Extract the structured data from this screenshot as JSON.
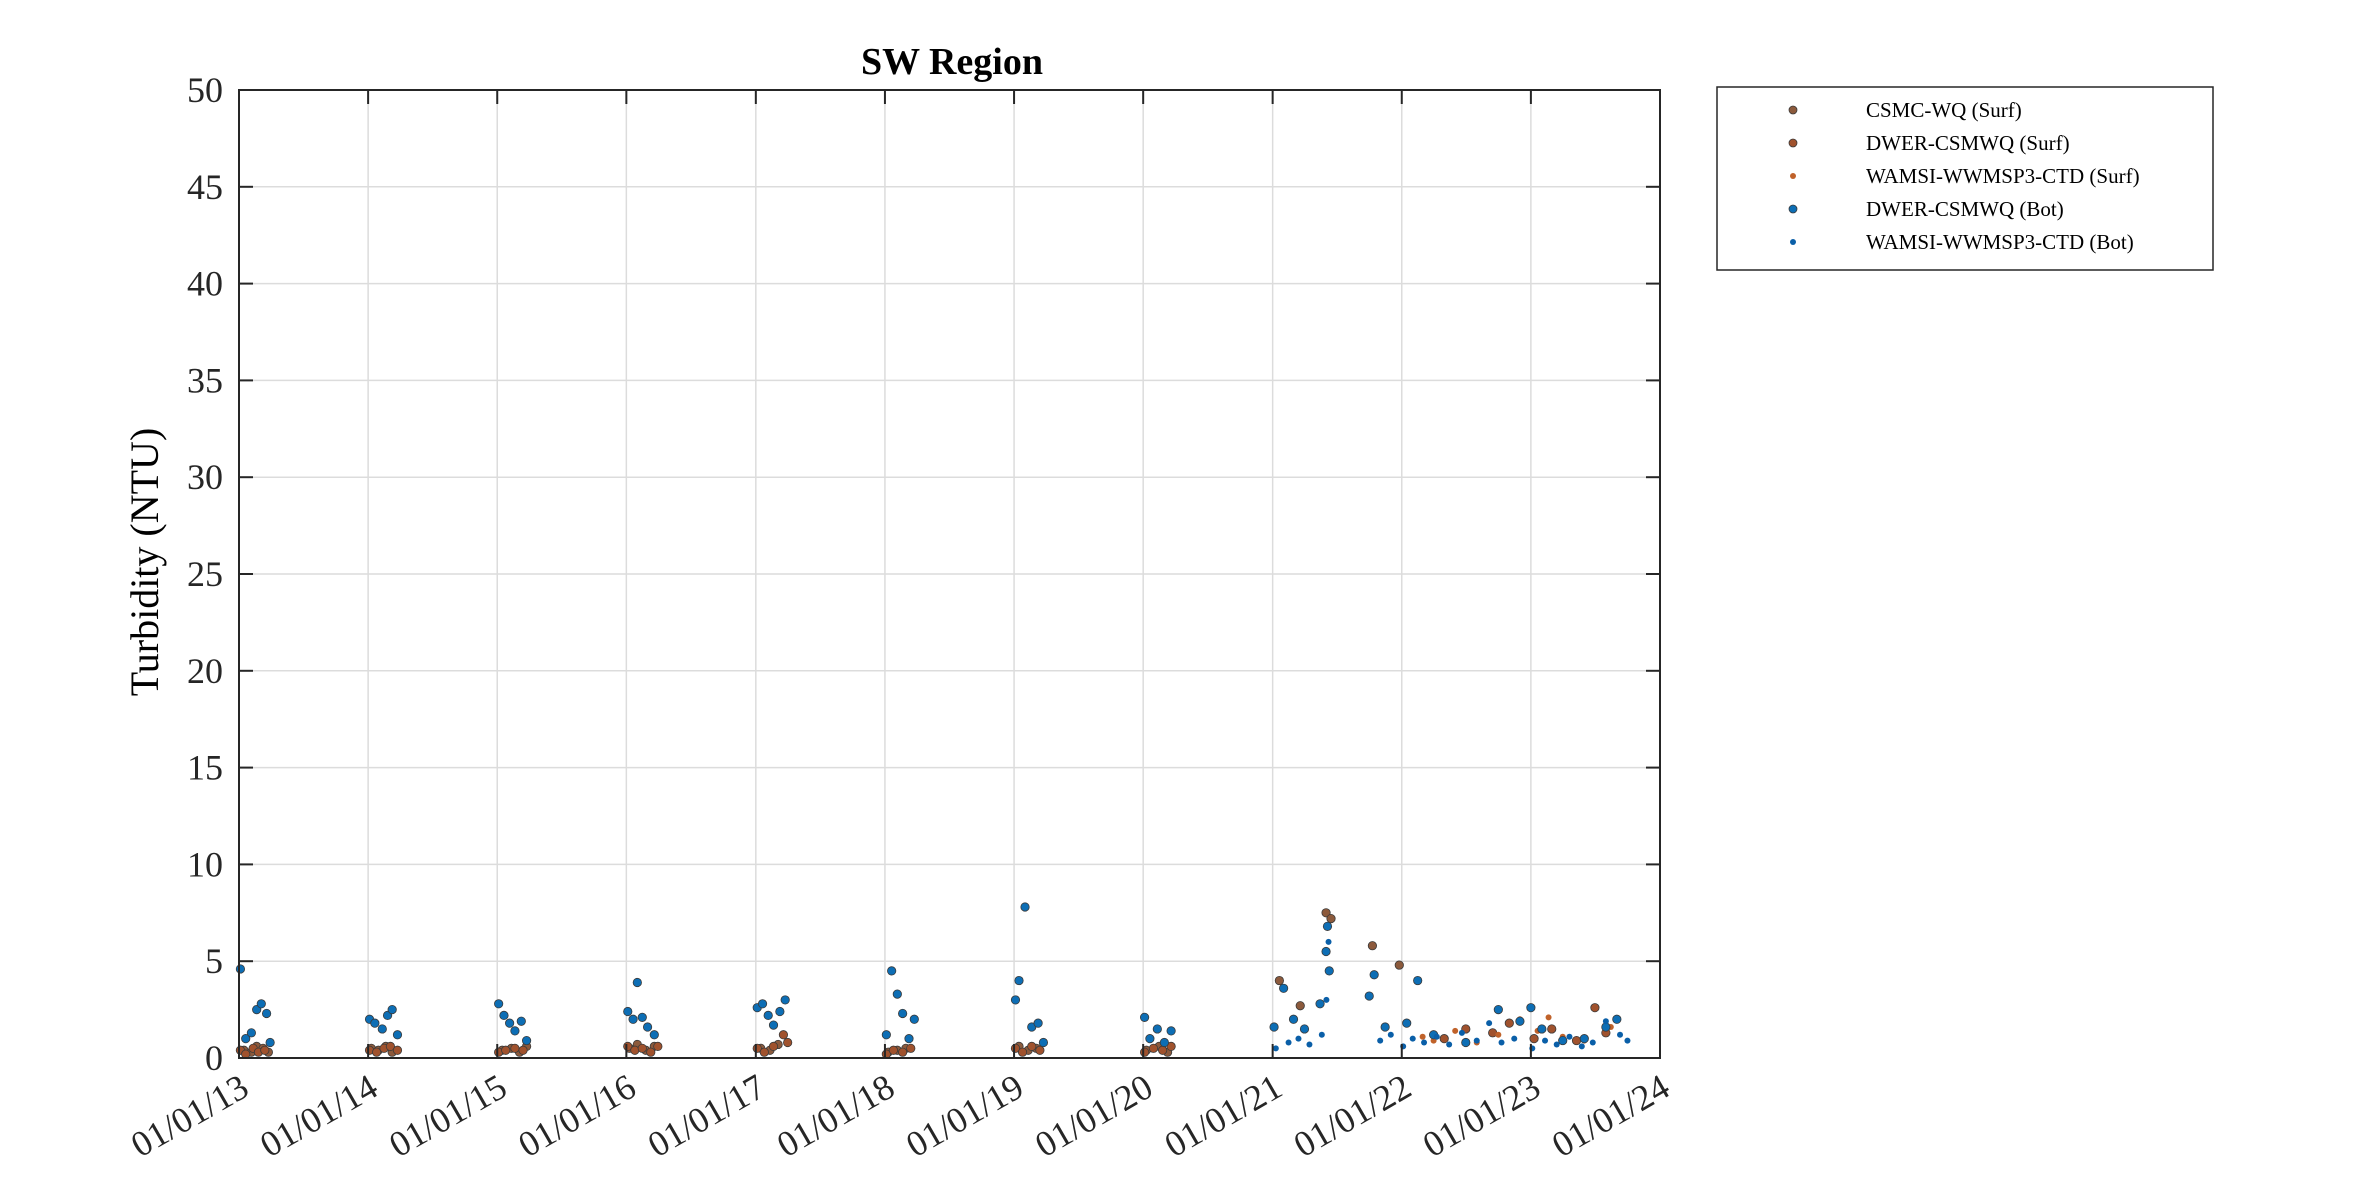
{
  "chart_data": {
    "type": "scatter",
    "title": "SW Region",
    "xlabel": "",
    "ylabel": "Turbidity (NTU)",
    "xlim": [
      "2013-01-01",
      "2024-01-01"
    ],
    "ylim": [
      0,
      50
    ],
    "x_ticks": [
      "01/01/13",
      "01/01/14",
      "01/01/15",
      "01/01/16",
      "01/01/17",
      "01/01/18",
      "01/01/19",
      "01/01/20",
      "01/01/21",
      "01/01/22",
      "01/01/23",
      "01/01/24"
    ],
    "y_ticks": [
      0,
      5,
      10,
      15,
      20,
      25,
      30,
      35,
      40,
      45,
      50
    ],
    "grid": true,
    "legend_position": "outside-right-top",
    "series": [
      {
        "name": "CSMC-WQ (Surf)",
        "color": "#8c5a3c",
        "marker": "circle-medium",
        "points": [
          [
            "2013-01-15",
            0.4
          ],
          [
            "2013-02-05",
            0.3
          ],
          [
            "2013-02-20",
            0.6
          ],
          [
            "2013-03-10",
            0.5
          ],
          [
            "2013-03-25",
            0.3
          ],
          [
            "2014-01-10",
            0.5
          ],
          [
            "2014-01-30",
            0.4
          ],
          [
            "2014-02-20",
            0.6
          ],
          [
            "2014-03-10",
            0.3
          ],
          [
            "2015-01-15",
            0.4
          ],
          [
            "2015-02-10",
            0.5
          ],
          [
            "2015-03-05",
            0.3
          ],
          [
            "2015-03-25",
            0.6
          ],
          [
            "2016-01-10",
            0.5
          ],
          [
            "2016-02-01",
            0.7
          ],
          [
            "2016-02-25",
            0.4
          ],
          [
            "2016-03-20",
            0.6
          ],
          [
            "2017-01-15",
            0.5
          ],
          [
            "2017-02-10",
            0.4
          ],
          [
            "2017-03-05",
            0.7
          ],
          [
            "2018-01-10",
            0.3
          ],
          [
            "2018-02-05",
            0.4
          ],
          [
            "2018-03-01",
            0.5
          ],
          [
            "2019-01-15",
            0.6
          ],
          [
            "2019-02-10",
            0.4
          ],
          [
            "2019-03-05",
            0.5
          ],
          [
            "2020-01-10",
            0.4
          ],
          [
            "2020-02-15",
            0.6
          ],
          [
            "2020-03-10",
            0.3
          ],
          [
            "2021-01-20",
            4.0
          ],
          [
            "2021-03-20",
            2.7
          ],
          [
            "2021-06-01",
            7.5
          ],
          [
            "2021-06-15",
            7.2
          ],
          [
            "2021-10-10",
            5.8
          ],
          [
            "2021-12-25",
            4.8
          ]
        ]
      },
      {
        "name": "DWER-CSMWQ (Surf)",
        "color": "#a0522d",
        "marker": "circle-medium",
        "points": [
          [
            "2013-01-05",
            0.4
          ],
          [
            "2013-01-20",
            0.2
          ],
          [
            "2013-02-10",
            0.5
          ],
          [
            "2013-02-25",
            0.3
          ],
          [
            "2013-03-15",
            0.4
          ],
          [
            "2014-01-05",
            0.4
          ],
          [
            "2014-01-25",
            0.3
          ],
          [
            "2014-02-15",
            0.5
          ],
          [
            "2014-03-05",
            0.6
          ],
          [
            "2014-03-25",
            0.4
          ],
          [
            "2015-01-05",
            0.3
          ],
          [
            "2015-01-25",
            0.4
          ],
          [
            "2015-02-20",
            0.5
          ],
          [
            "2015-03-15",
            0.4
          ],
          [
            "2016-01-05",
            0.6
          ],
          [
            "2016-01-25",
            0.4
          ],
          [
            "2016-02-15",
            0.5
          ],
          [
            "2016-03-10",
            0.3
          ],
          [
            "2016-03-30",
            0.6
          ],
          [
            "2017-01-05",
            0.5
          ],
          [
            "2017-01-25",
            0.3
          ],
          [
            "2017-02-20",
            0.6
          ],
          [
            "2017-03-20",
            1.2
          ],
          [
            "2017-04-01",
            0.8
          ],
          [
            "2018-01-05",
            0.2
          ],
          [
            "2018-01-25",
            0.4
          ],
          [
            "2018-02-20",
            0.3
          ],
          [
            "2018-03-15",
            0.5
          ],
          [
            "2019-01-05",
            0.5
          ],
          [
            "2019-01-25",
            0.3
          ],
          [
            "2019-02-20",
            0.6
          ],
          [
            "2019-03-15",
            0.4
          ],
          [
            "2020-01-05",
            0.3
          ],
          [
            "2020-01-30",
            0.5
          ],
          [
            "2020-02-25",
            0.4
          ],
          [
            "2020-03-20",
            0.6
          ],
          [
            "2022-05-01",
            1.0
          ],
          [
            "2022-07-01",
            1.5
          ],
          [
            "2022-09-15",
            1.3
          ],
          [
            "2022-11-01",
            1.8
          ],
          [
            "2023-01-10",
            1.0
          ],
          [
            "2023-03-01",
            1.5
          ],
          [
            "2023-05-10",
            0.9
          ],
          [
            "2023-07-01",
            2.6
          ],
          [
            "2023-08-01",
            1.3
          ]
        ]
      },
      {
        "name": "WAMSI-WWMSP3-CTD (Surf)",
        "color": "#c0622a",
        "marker": "dot",
        "points": [
          [
            "2022-03-01",
            1.1
          ],
          [
            "2022-04-01",
            0.9
          ],
          [
            "2022-06-01",
            1.4
          ],
          [
            "2022-08-01",
            0.8
          ],
          [
            "2022-10-01",
            1.2
          ],
          [
            "2022-12-01",
            2.0
          ],
          [
            "2023-01-20",
            1.4
          ],
          [
            "2023-02-20",
            2.1
          ],
          [
            "2023-04-01",
            1.1
          ],
          [
            "2023-06-01",
            0.9
          ],
          [
            "2023-08-15",
            1.6
          ]
        ]
      },
      {
        "name": "DWER-CSMWQ (Bot)",
        "color": "#0d6eb5",
        "marker": "circle-medium",
        "points": [
          [
            "2013-01-05",
            4.6
          ],
          [
            "2013-01-20",
            1.0
          ],
          [
            "2013-02-05",
            1.3
          ],
          [
            "2013-02-20",
            2.5
          ],
          [
            "2013-03-05",
            2.8
          ],
          [
            "2013-03-20",
            2.3
          ],
          [
            "2013-03-30",
            0.8
          ],
          [
            "2014-01-05",
            2.0
          ],
          [
            "2014-01-20",
            1.8
          ],
          [
            "2014-02-10",
            1.5
          ],
          [
            "2014-02-25",
            2.2
          ],
          [
            "2014-03-10",
            2.5
          ],
          [
            "2014-03-25",
            1.2
          ],
          [
            "2015-01-05",
            2.8
          ],
          [
            "2015-01-20",
            2.2
          ],
          [
            "2015-02-05",
            1.8
          ],
          [
            "2015-02-20",
            1.4
          ],
          [
            "2015-03-10",
            1.9
          ],
          [
            "2015-03-25",
            0.9
          ],
          [
            "2016-01-05",
            2.4
          ],
          [
            "2016-01-20",
            2.0
          ],
          [
            "2016-02-01",
            3.9
          ],
          [
            "2016-02-15",
            2.1
          ],
          [
            "2016-03-01",
            1.6
          ],
          [
            "2016-03-20",
            1.2
          ],
          [
            "2017-01-05",
            2.6
          ],
          [
            "2017-01-20",
            2.8
          ],
          [
            "2017-02-05",
            2.2
          ],
          [
            "2017-02-20",
            1.7
          ],
          [
            "2017-03-10",
            2.4
          ],
          [
            "2017-03-25",
            3.0
          ],
          [
            "2018-01-05",
            1.2
          ],
          [
            "2018-01-20",
            4.5
          ],
          [
            "2018-02-05",
            3.3
          ],
          [
            "2018-02-20",
            2.3
          ],
          [
            "2018-03-10",
            1.0
          ],
          [
            "2018-03-25",
            2.0
          ],
          [
            "2019-01-05",
            3.0
          ],
          [
            "2019-01-15",
            4.0
          ],
          [
            "2019-02-01",
            7.8
          ],
          [
            "2019-02-20",
            1.6
          ],
          [
            "2019-03-10",
            1.8
          ],
          [
            "2019-03-25",
            0.8
          ],
          [
            "2020-01-05",
            2.1
          ],
          [
            "2020-01-20",
            1.0
          ],
          [
            "2020-02-10",
            1.5
          ],
          [
            "2020-03-01",
            0.8
          ],
          [
            "2020-03-20",
            1.4
          ],
          [
            "2021-01-05",
            1.6
          ],
          [
            "2021-02-01",
            3.6
          ],
          [
            "2021-03-01",
            2.0
          ],
          [
            "2021-04-01",
            1.5
          ],
          [
            "2021-05-15",
            2.8
          ],
          [
            "2021-06-01",
            5.5
          ],
          [
            "2021-06-05",
            6.8
          ],
          [
            "2021-06-10",
            4.5
          ],
          [
            "2021-10-01",
            3.2
          ],
          [
            "2021-10-15",
            4.3
          ],
          [
            "2021-11-15",
            1.6
          ],
          [
            "2022-01-15",
            1.8
          ],
          [
            "2022-02-15",
            4.0
          ],
          [
            "2022-04-01",
            1.2
          ],
          [
            "2022-07-01",
            0.8
          ],
          [
            "2022-10-01",
            2.5
          ],
          [
            "2022-12-01",
            1.9
          ],
          [
            "2023-01-01",
            2.6
          ],
          [
            "2023-02-01",
            1.5
          ],
          [
            "2023-04-01",
            0.9
          ],
          [
            "2023-06-01",
            1.0
          ],
          [
            "2023-08-01",
            1.6
          ],
          [
            "2023-09-01",
            2.0
          ]
        ]
      },
      {
        "name": "WAMSI-WWMSP3-CTD (Bot)",
        "color": "#0a5fa8",
        "marker": "dot",
        "points": [
          [
            "2021-01-10",
            0.5
          ],
          [
            "2021-02-15",
            0.8
          ],
          [
            "2021-03-15",
            1.0
          ],
          [
            "2021-04-15",
            0.7
          ],
          [
            "2021-05-20",
            1.2
          ],
          [
            "2021-06-02",
            3.0
          ],
          [
            "2021-06-08",
            6.0
          ],
          [
            "2021-11-01",
            0.9
          ],
          [
            "2021-12-01",
            1.2
          ],
          [
            "2022-01-05",
            0.6
          ],
          [
            "2022-02-01",
            1.0
          ],
          [
            "2022-03-05",
            0.8
          ],
          [
            "2022-04-10",
            1.1
          ],
          [
            "2022-05-15",
            0.7
          ],
          [
            "2022-06-20",
            1.3
          ],
          [
            "2022-08-01",
            0.9
          ],
          [
            "2022-09-05",
            1.8
          ],
          [
            "2022-10-10",
            0.8
          ],
          [
            "2022-11-15",
            1.0
          ],
          [
            "2023-01-05",
            0.5
          ],
          [
            "2023-02-10",
            0.9
          ],
          [
            "2023-03-15",
            0.7
          ],
          [
            "2023-04-20",
            1.1
          ],
          [
            "2023-05-25",
            0.6
          ],
          [
            "2023-06-25",
            0.8
          ],
          [
            "2023-08-01",
            1.9
          ],
          [
            "2023-09-10",
            1.2
          ],
          [
            "2023-10-01",
            0.9
          ]
        ]
      }
    ]
  }
}
